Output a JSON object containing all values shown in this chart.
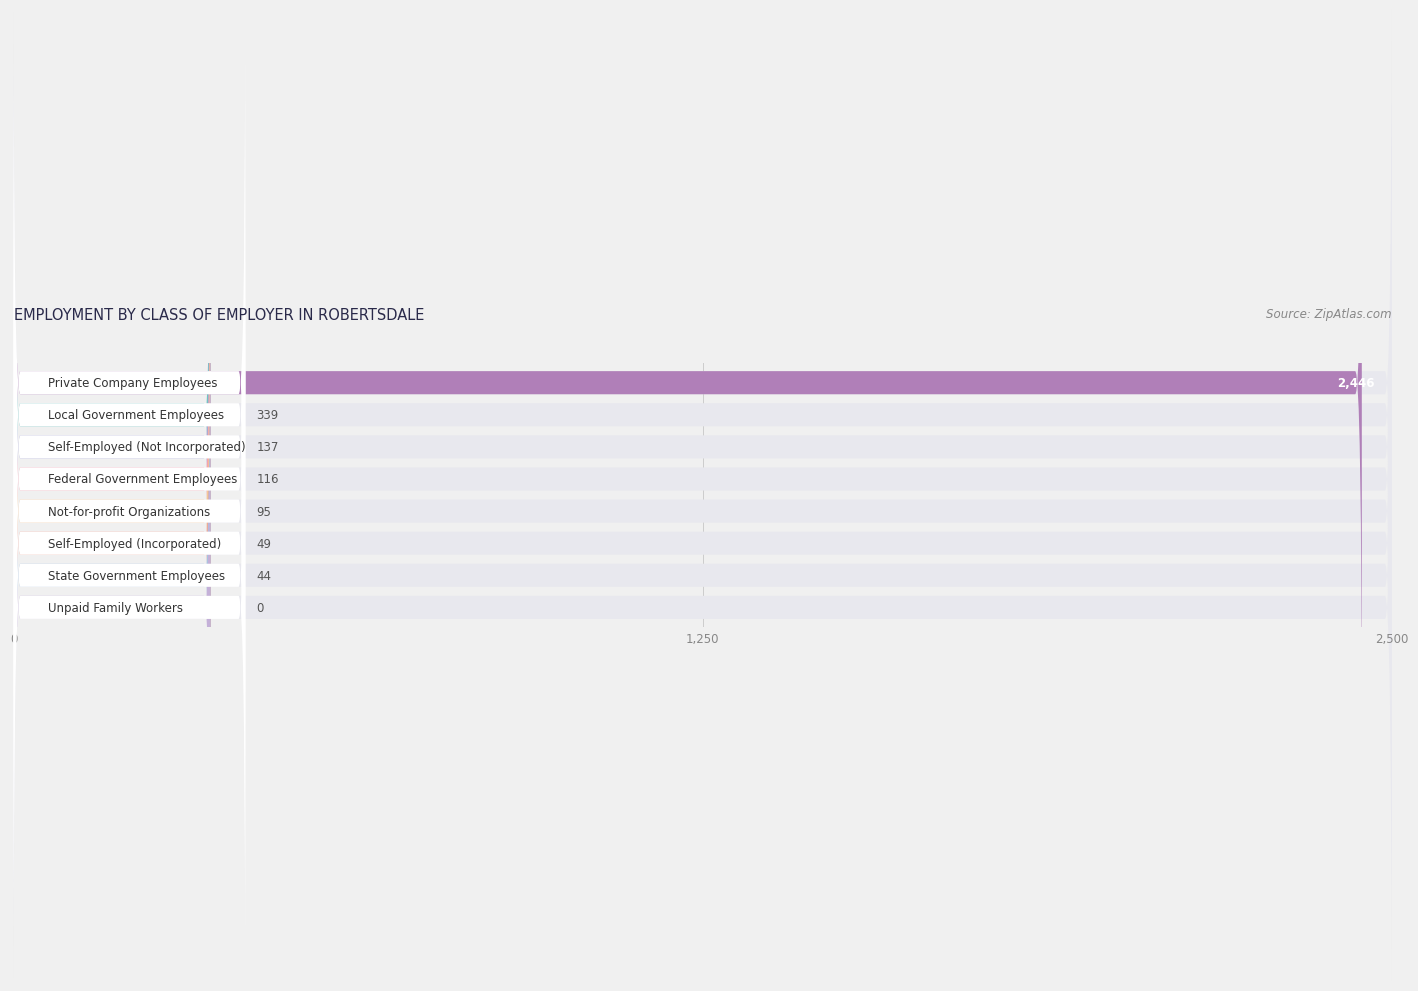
{
  "title": "EMPLOYMENT BY CLASS OF EMPLOYER IN ROBERTSDALE",
  "source": "Source: ZipAtlas.com",
  "categories": [
    "Private Company Employees",
    "Local Government Employees",
    "Self-Employed (Not Incorporated)",
    "Federal Government Employees",
    "Not-for-profit Organizations",
    "Self-Employed (Incorporated)",
    "State Government Employees",
    "Unpaid Family Workers"
  ],
  "values": [
    2446,
    339,
    137,
    116,
    95,
    49,
    44,
    0
  ],
  "bar_colors": [
    "#b07fb8",
    "#6ec4c1",
    "#a9a9d4",
    "#f4a0b0",
    "#f5c897",
    "#f0a898",
    "#a8c4e0",
    "#c4b0d8"
  ],
  "xlim": [
    0,
    2500
  ],
  "xticks": [
    0,
    1250,
    2500
  ],
  "background_color": "#f0f0f0",
  "row_bg_color": "#e8e8ee",
  "white_label_bg": "#ffffff",
  "title_fontsize": 10.5,
  "source_fontsize": 8.5,
  "label_fontsize": 8.5,
  "value_fontsize": 8.5,
  "title_color": "#2a2a4a",
  "label_text_color": "#333333",
  "value_text_color": "#555555",
  "tick_color": "#888888"
}
